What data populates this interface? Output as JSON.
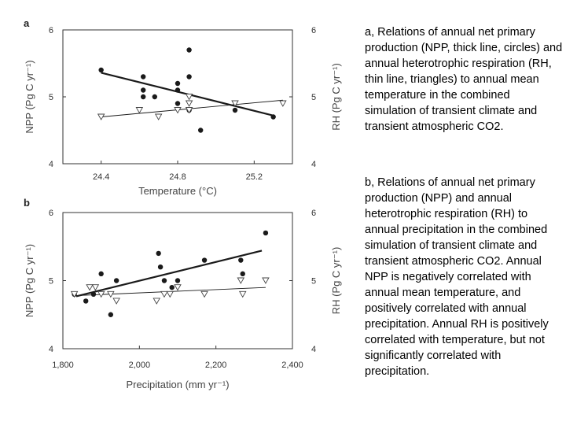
{
  "chart_data": [
    {
      "type": "scatter",
      "panel_label": "a",
      "xlabel": "Temperature (°C)",
      "ylabel_left": "NPP (Pg C yr⁻¹)",
      "ylabel_right": "RH (Pg C yr⁻¹)",
      "xlim": [
        24.2,
        25.4
      ],
      "ylim": [
        4,
        6
      ],
      "xticks": [
        24.4,
        24.8,
        25.2
      ],
      "xtick_labels": [
        "24.4",
        "24.8",
        "25.2"
      ],
      "yticks": [
        4,
        5,
        6
      ],
      "ytick_labels": [
        "4",
        "5",
        "6"
      ],
      "series": [
        {
          "name": "NPP",
          "marker": "circle",
          "x": [
            24.4,
            24.62,
            24.62,
            24.62,
            24.68,
            24.8,
            24.8,
            24.8,
            24.86,
            24.86,
            24.86,
            24.92,
            25.1,
            25.3
          ],
          "y": [
            5.4,
            5.3,
            5.1,
            5.0,
            5.0,
            5.2,
            5.1,
            4.9,
            5.7,
            5.3,
            4.8,
            4.5,
            4.8,
            4.7
          ],
          "fit": [
            [
              24.4,
              5.36
            ],
            [
              25.3,
              4.72
            ]
          ],
          "fit_style": "thick"
        },
        {
          "name": "RH",
          "marker": "triangle",
          "x": [
            24.4,
            24.6,
            24.7,
            24.8,
            24.86,
            24.86,
            24.86,
            25.1,
            25.35
          ],
          "y": [
            4.7,
            4.8,
            4.7,
            4.8,
            4.9,
            4.8,
            5.0,
            4.9,
            4.9
          ],
          "fit": [
            [
              24.4,
              4.7
            ],
            [
              25.35,
              4.95
            ]
          ],
          "fit_style": "thin"
        }
      ]
    },
    {
      "type": "scatter",
      "panel_label": "b",
      "xlabel": "Precipitation (mm yr⁻¹)",
      "ylabel_left": "NPP (Pg C yr⁻¹)",
      "ylabel_right": "RH (Pg C yr⁻¹)",
      "xlim": [
        1800,
        2400
      ],
      "ylim": [
        4,
        6
      ],
      "xticks": [
        1800,
        2000,
        2200,
        2400
      ],
      "xtick_labels": [
        "1,800",
        "2,000",
        "2,200",
        "2,400"
      ],
      "yticks": [
        4,
        5,
        6
      ],
      "ytick_labels": [
        "4",
        "5",
        "6"
      ],
      "series": [
        {
          "name": "NPP",
          "marker": "circle",
          "x": [
            1830,
            1860,
            1880,
            1900,
            1925,
            1940,
            2050,
            2055,
            2065,
            2085,
            2100,
            2170,
            2265,
            2270,
            2330
          ],
          "y": [
            4.8,
            4.7,
            4.8,
            5.1,
            4.5,
            5.0,
            5.4,
            5.2,
            5.0,
            4.9,
            5.0,
            5.3,
            5.3,
            5.1,
            5.7
          ],
          "fit": [
            [
              1835,
              4.77
            ],
            [
              2320,
              5.44
            ]
          ],
          "fit_style": "thick"
        },
        {
          "name": "RH",
          "marker": "triangle",
          "x": [
            1830,
            1870,
            1885,
            1900,
            1925,
            1940,
            2045,
            2065,
            2080,
            2100,
            2170,
            2265,
            2270,
            2330
          ],
          "y": [
            4.8,
            4.9,
            4.9,
            4.8,
            4.8,
            4.7,
            4.7,
            4.8,
            4.8,
            4.9,
            4.8,
            5.0,
            4.8,
            5.0
          ],
          "fit": [
            [
              1835,
              4.78
            ],
            [
              2330,
              4.9
            ]
          ],
          "fit_style": "thin"
        }
      ]
    }
  ],
  "captions": {
    "a": "a, Relations of annual net primary production (NPP, thick line, circles) and annual heterotrophic respiration (RH, thin line, triangles) to annual mean temperature in the combined simulation of transient climate and transient atmospheric CO2.",
    "b": "b, Relations of annual net primary production (NPP) and annual heterotrophic respiration (RH) to annual precipitation in the combined simulation of transient climate and transient atmospheric CO2. Annual NPP is negatively correlated with annual mean temperature, and positively correlated with annual precipitation. Annual RH is positively correlated with temperature, but not significantly correlated with precipitation."
  },
  "colors": {
    "ink": "#1a1a1a",
    "axis": "#333333",
    "label": "#444444"
  }
}
